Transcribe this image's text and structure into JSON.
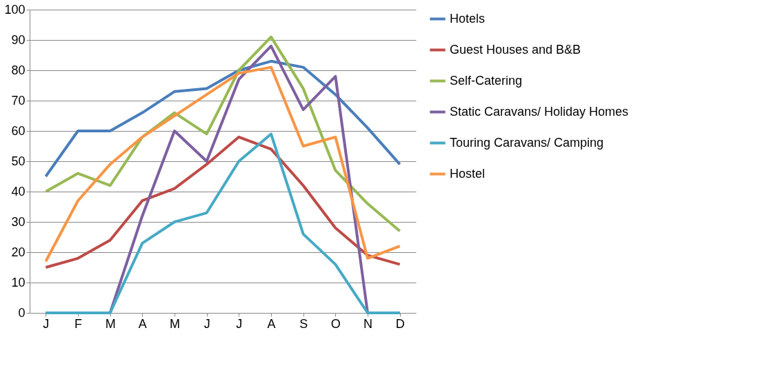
{
  "chart_data": {
    "type": "line",
    "categories": [
      "J",
      "F",
      "M",
      "A",
      "M",
      "J",
      "J",
      "A",
      "S",
      "O",
      "N",
      "D"
    ],
    "series": [
      {
        "name": "Hotels",
        "color": "#4a7ebb",
        "values": [
          45,
          60,
          60,
          66,
          73,
          74,
          80,
          83,
          81,
          72,
          61,
          49
        ]
      },
      {
        "name": "Guest Houses and B&B",
        "color": "#be4b48",
        "values": [
          15,
          18,
          24,
          37,
          41,
          49,
          58,
          54,
          42,
          28,
          19,
          16
        ]
      },
      {
        "name": "Self-Catering",
        "color": "#98b954",
        "values": [
          40,
          46,
          42,
          58,
          66,
          59,
          80,
          91,
          74,
          47,
          36,
          27
        ]
      },
      {
        "name": "Static Caravans/ Holiday Homes",
        "color": "#7d60a0",
        "values": [
          0,
          0,
          0,
          32,
          60,
          50,
          77,
          88,
          67,
          78,
          0,
          0
        ]
      },
      {
        "name": "Touring Caravans/ Camping",
        "color": "#46aac5",
        "values": [
          0,
          0,
          0,
          23,
          30,
          33,
          50,
          59,
          26,
          16,
          0,
          0
        ]
      },
      {
        "name": "Hostel",
        "color": "#f79646",
        "values": [
          17,
          37,
          49,
          58,
          65,
          72,
          79,
          81,
          55,
          58,
          18,
          22
        ]
      }
    ],
    "ylim": [
      0,
      100
    ],
    "yticks": [
      0,
      10,
      20,
      30,
      40,
      50,
      60,
      70,
      80,
      90,
      100
    ],
    "grid": "y",
    "legend": "right",
    "marker": "none",
    "line_style": "solid"
  }
}
